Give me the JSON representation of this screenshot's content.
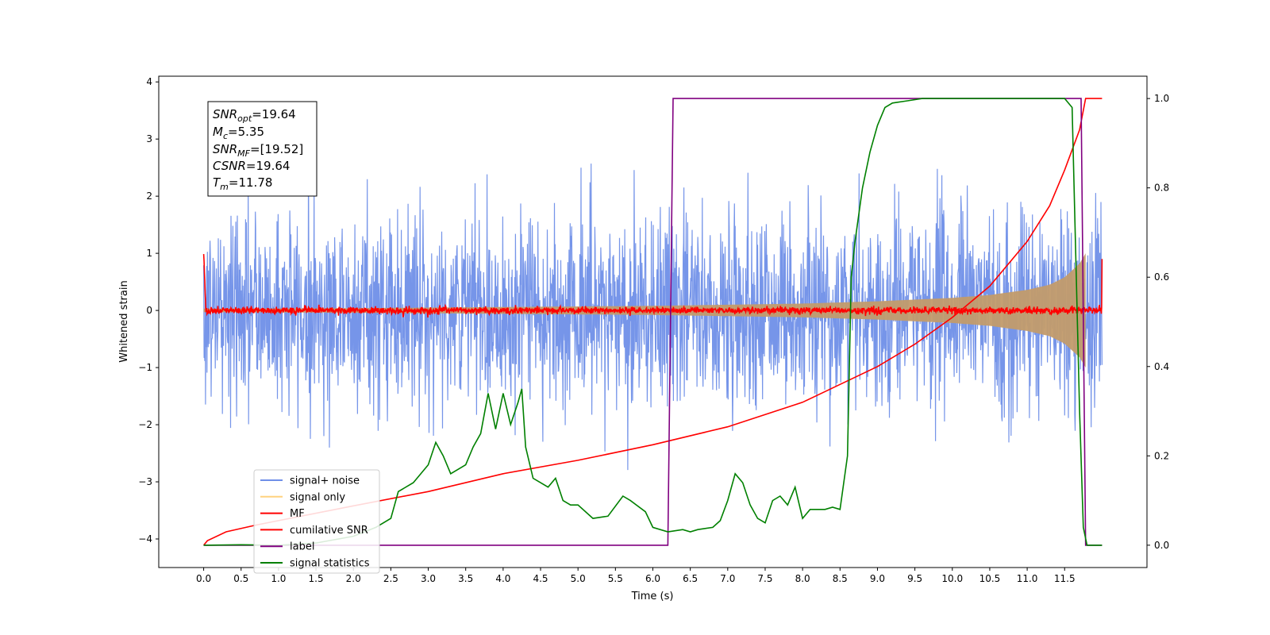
{
  "chart_data": {
    "type": "line",
    "xlabel": "Time (s)",
    "ylabel": "Whitened strain",
    "xlim": [
      -0.6,
      12.6
    ],
    "ylim": [
      -4.5,
      4.1
    ],
    "y2lim": [
      -0.05,
      1.05
    ],
    "x_ticks": [
      "0.0",
      "0.5",
      "1.0",
      "1.5",
      "2.0",
      "2.5",
      "3.0",
      "3.5",
      "4.0",
      "4.5",
      "5.0",
      "5.5",
      "6.0",
      "6.5",
      "7.0",
      "7.5",
      "8.0",
      "8.5",
      "9.0",
      "9.5",
      "10.0",
      "10.5",
      "11.0",
      "11.5"
    ],
    "y_ticks": [
      "4",
      "3",
      "2",
      "1",
      "0",
      "−1",
      "−2",
      "−3",
      "−4"
    ],
    "y2_ticks": [
      "1.0",
      "0.8",
      "0.6",
      "0.4",
      "0.2",
      "0.0"
    ],
    "legend_position": "lower-left",
    "legend": [
      {
        "label": "signal+ noise",
        "color": "#6f8fe8"
      },
      {
        "label": "signal only",
        "color": "#ffd27f"
      },
      {
        "label": "MF",
        "color": "#ff0000"
      },
      {
        "label": "cumilative SNR",
        "color": "#ff0000"
      },
      {
        "label": "label",
        "color": "#800080"
      },
      {
        "label": "signal statistics",
        "color": "#008000"
      }
    ],
    "annotation": {
      "snr_opt": {
        "base": "SNR",
        "sub": "opt",
        "value": "=19.64"
      },
      "mc": {
        "base": "M",
        "sub": "c",
        "value": "=5.35"
      },
      "snr_mf": {
        "base": "SNR",
        "sub": "MF",
        "value": "=[19.52]"
      },
      "csnr": {
        "base": "CSNR",
        "sub": "",
        "value": "=19.64"
      },
      "tm": {
        "base": "T",
        "sub": "m",
        "value": "=11.78"
      }
    },
    "series": [
      {
        "name": "signal+ noise",
        "axis": "left",
        "kind": "noise",
        "x_range": [
          0.0,
          12.0
        ],
        "std": 0.85,
        "color": "#6f8fe8"
      },
      {
        "name": "signal only",
        "axis": "left",
        "kind": "envelope",
        "x": [
          0.0,
          2.0,
          4.0,
          6.0,
          7.0,
          8.0,
          9.0,
          10.0,
          10.5,
          11.0,
          11.3,
          11.5,
          11.7,
          11.78
        ],
        "amplitude": [
          0.03,
          0.04,
          0.06,
          0.08,
          0.1,
          0.12,
          0.16,
          0.22,
          0.27,
          0.36,
          0.45,
          0.58,
          0.82,
          1.0
        ],
        "color": "#c29b6c"
      },
      {
        "name": "MF",
        "axis": "left",
        "kind": "noise",
        "x_range": [
          0.0,
          12.0
        ],
        "std": 0.03,
        "start_value": 1.0,
        "end_value": 0.9,
        "color": "#ff0000"
      },
      {
        "name": "cumilative SNR",
        "axis": "right",
        "x": [
          0.0,
          0.05,
          0.3,
          0.7,
          1.0,
          2.0,
          3.0,
          4.0,
          5.0,
          6.0,
          7.0,
          8.0,
          8.5,
          9.0,
          9.5,
          10.0,
          10.5,
          11.0,
          11.3,
          11.5,
          11.7,
          11.78,
          12.0
        ],
        "values": [
          0.0,
          0.01,
          0.03,
          0.045,
          0.055,
          0.088,
          0.12,
          0.16,
          0.19,
          0.225,
          0.265,
          0.32,
          0.36,
          0.4,
          0.45,
          0.51,
          0.58,
          0.68,
          0.76,
          0.84,
          0.93,
          1.0,
          1.0
        ],
        "color": "#ff0000"
      },
      {
        "name": "label",
        "axis": "right",
        "x": [
          0.0,
          6.2,
          6.27,
          11.72,
          11.78,
          12.0
        ],
        "values": [
          0.0,
          0.0,
          1.0,
          1.0,
          0.0,
          0.0
        ],
        "color": "#800080"
      },
      {
        "name": "signal statistics",
        "axis": "right",
        "x": [
          0.0,
          0.5,
          1.0,
          1.5,
          2.0,
          2.3,
          2.5,
          2.6,
          2.8,
          3.0,
          3.1,
          3.2,
          3.3,
          3.4,
          3.5,
          3.6,
          3.7,
          3.8,
          3.9,
          4.0,
          4.1,
          4.2,
          4.25,
          4.3,
          4.4,
          4.5,
          4.6,
          4.7,
          4.8,
          4.9,
          5.0,
          5.2,
          5.4,
          5.6,
          5.7,
          5.9,
          6.0,
          6.2,
          6.4,
          6.5,
          6.6,
          6.8,
          6.9,
          7.0,
          7.1,
          7.2,
          7.3,
          7.4,
          7.5,
          7.6,
          7.7,
          7.8,
          7.9,
          8.0,
          8.1,
          8.3,
          8.4,
          8.5,
          8.6,
          8.65,
          8.7,
          8.8,
          8.9,
          9.0,
          9.1,
          9.2,
          9.4,
          9.6,
          10.0,
          10.5,
          11.0,
          11.5,
          11.6,
          11.7,
          11.75,
          11.8,
          12.0
        ],
        "values": [
          0.0,
          0.001,
          0.0,
          0.005,
          0.02,
          0.04,
          0.06,
          0.12,
          0.14,
          0.18,
          0.23,
          0.2,
          0.16,
          0.17,
          0.18,
          0.22,
          0.25,
          0.34,
          0.26,
          0.34,
          0.27,
          0.32,
          0.35,
          0.22,
          0.15,
          0.14,
          0.13,
          0.15,
          0.1,
          0.09,
          0.09,
          0.06,
          0.065,
          0.11,
          0.1,
          0.075,
          0.04,
          0.03,
          0.035,
          0.03,
          0.035,
          0.04,
          0.055,
          0.1,
          0.16,
          0.14,
          0.09,
          0.06,
          0.05,
          0.1,
          0.11,
          0.09,
          0.13,
          0.06,
          0.08,
          0.08,
          0.085,
          0.08,
          0.2,
          0.6,
          0.68,
          0.8,
          0.88,
          0.94,
          0.98,
          0.99,
          0.995,
          1.0,
          1.0,
          1.0,
          1.0,
          1.0,
          0.98,
          0.3,
          0.04,
          0.0,
          0.0
        ],
        "color": "#008000"
      }
    ]
  }
}
